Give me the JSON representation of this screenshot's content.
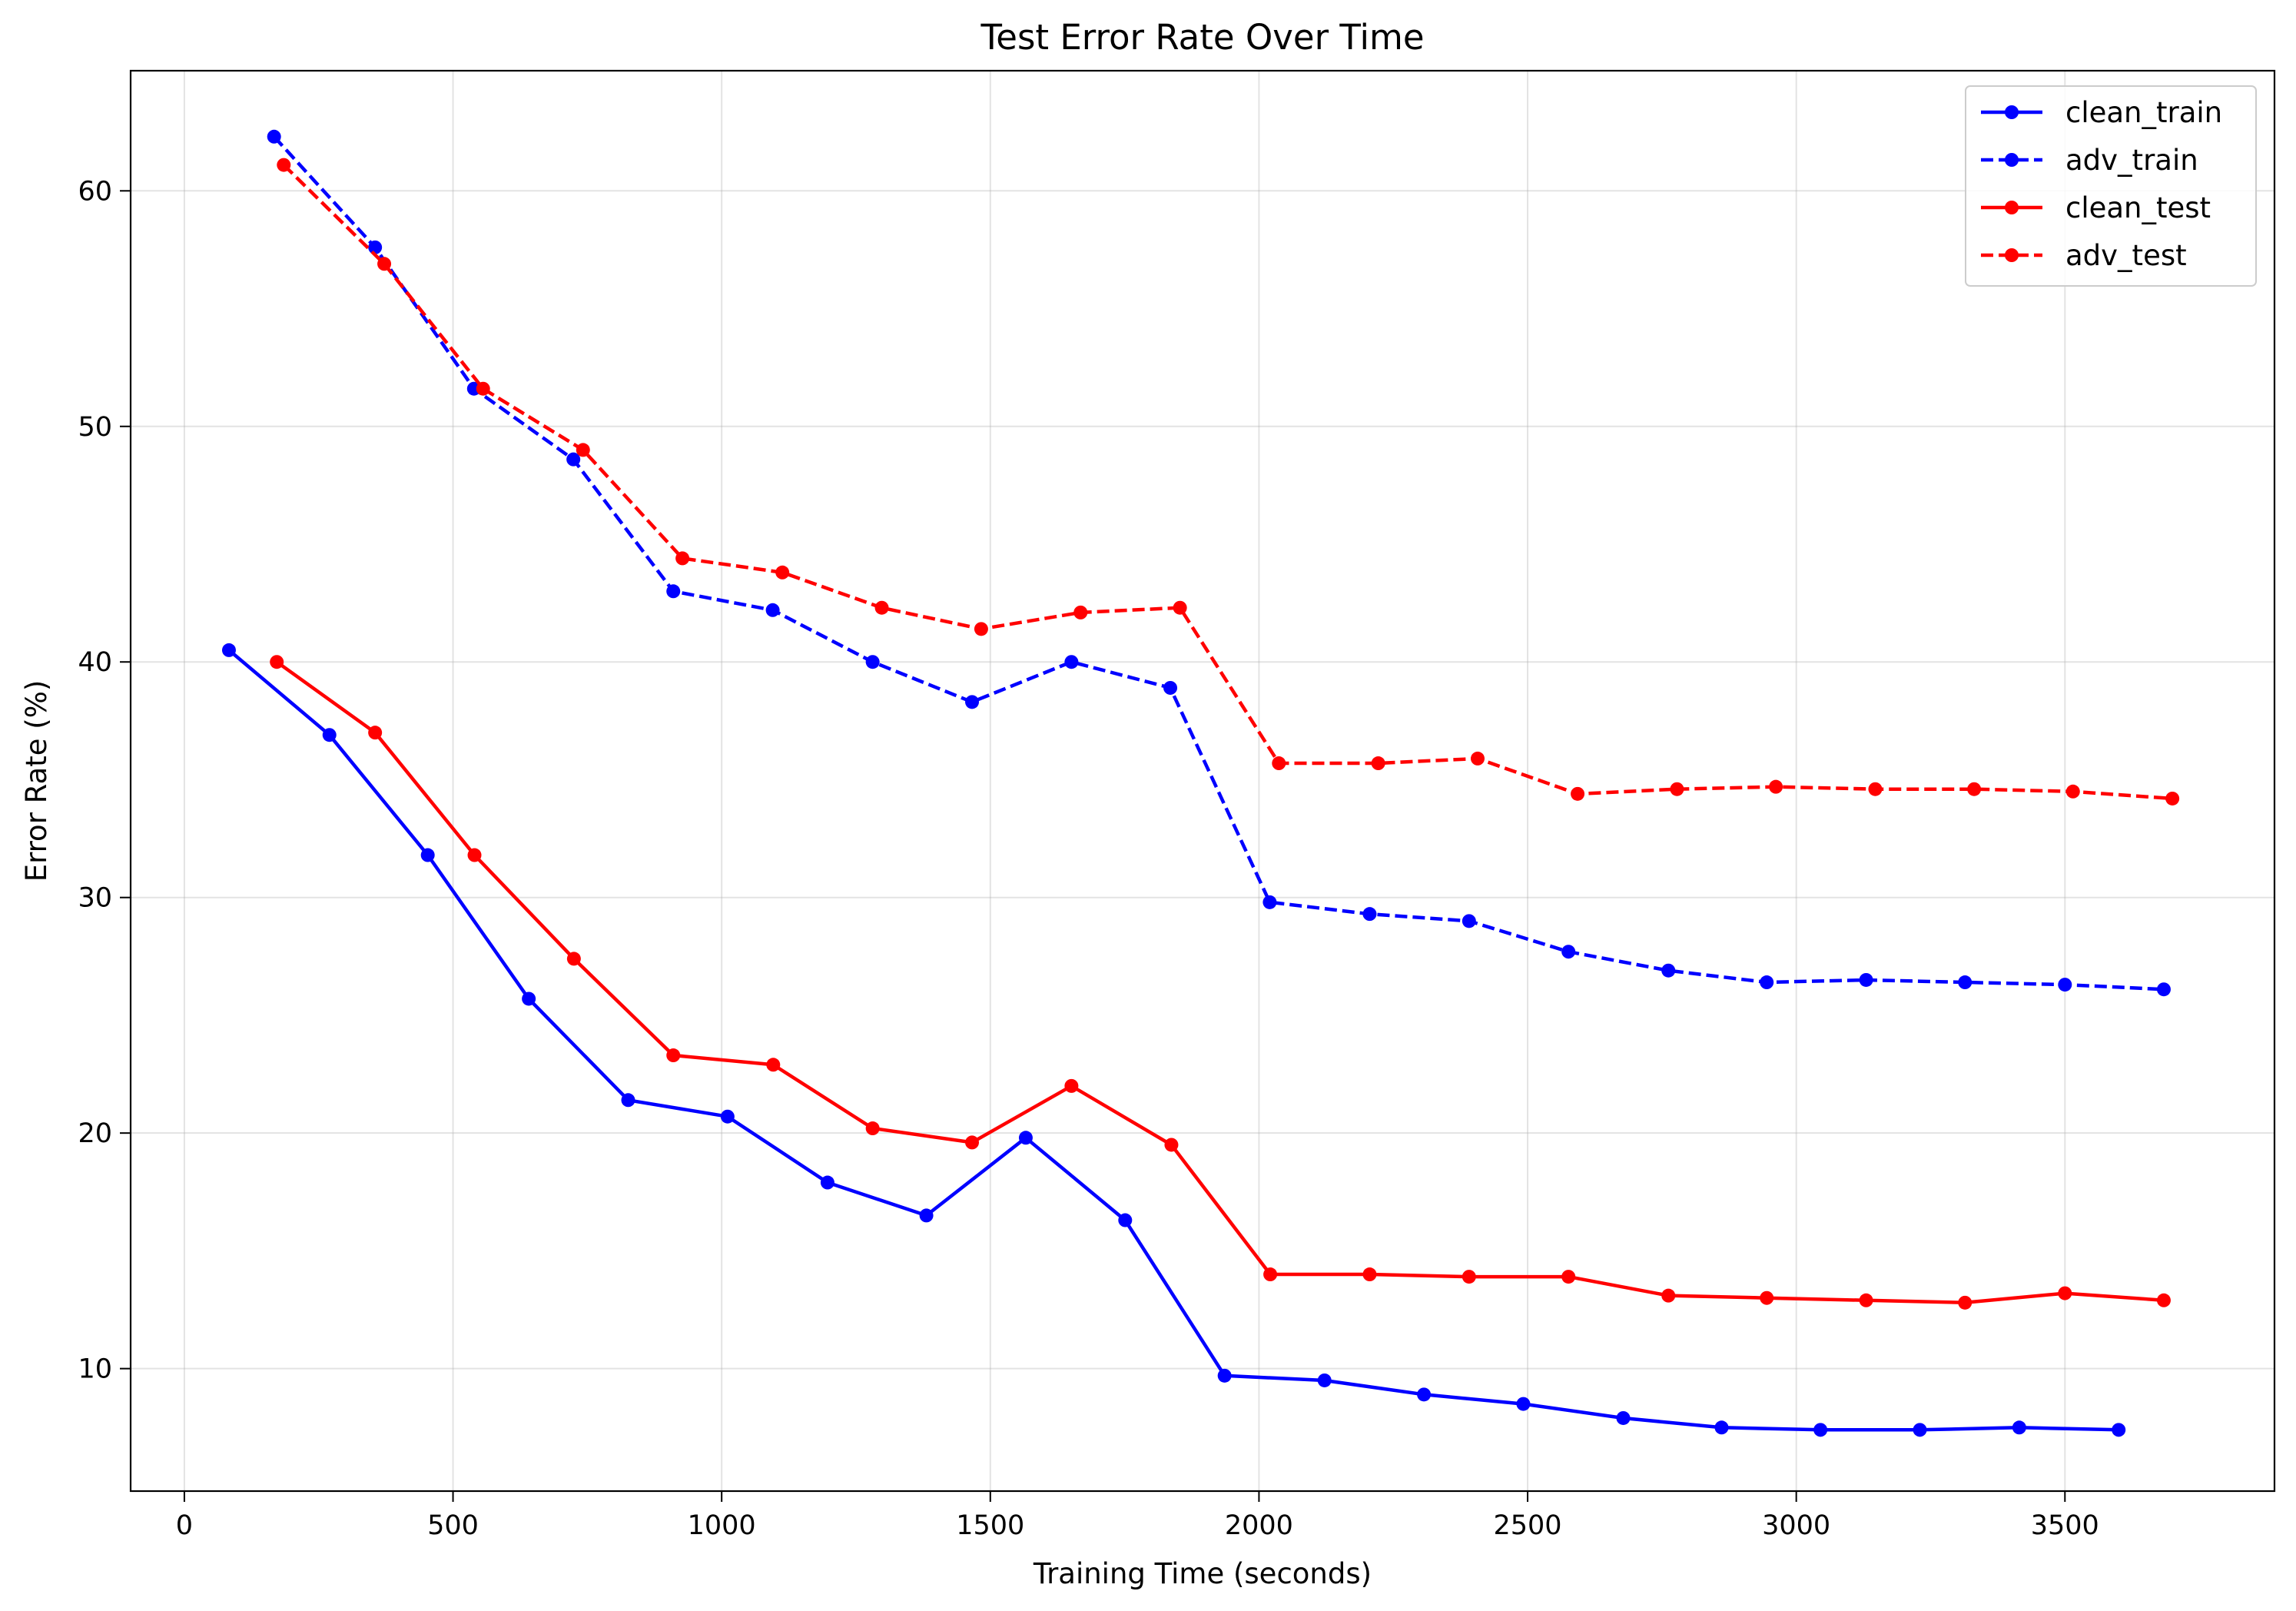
{
  "chart_data": {
    "type": "line",
    "title": "Test Error Rate Over Time",
    "xlabel": "Training Time (seconds)",
    "ylabel": "Error Rate (%)",
    "xlim": [
      -100,
      3890
    ],
    "ylim": [
      4.8,
      65.1
    ],
    "xticks": [
      0,
      500,
      1000,
      1500,
      2000,
      2500,
      3000,
      3500
    ],
    "yticks": [
      10,
      20,
      30,
      40,
      50,
      60
    ],
    "grid": true,
    "legend_position": "top-right",
    "series": [
      {
        "name": "clean_train",
        "color": "#0000ff",
        "linestyle": "solid",
        "marker": "circle",
        "x": [
          83,
          270,
          453,
          641,
          826,
          1011,
          1197,
          1381,
          1566,
          1751,
          1936,
          2122,
          2307,
          2492,
          2678,
          2861,
          3045,
          3230,
          3415,
          3600
        ],
        "y": [
          40.5,
          36.9,
          31.8,
          25.7,
          21.4,
          20.7,
          17.9,
          16.5,
          19.8,
          16.3,
          9.7,
          9.5,
          8.9,
          8.5,
          7.9,
          7.5,
          7.4,
          7.4,
          7.5,
          7.4
        ]
      },
      {
        "name": "adv_train",
        "color": "#0000ff",
        "linestyle": "dashed",
        "marker": "circle",
        "x": [
          167,
          355,
          539,
          724,
          910,
          1095,
          1281,
          1466,
          1651,
          1835,
          2020,
          2206,
          2391,
          2576,
          2762,
          2945,
          3130,
          3314,
          3500,
          3684
        ],
        "y": [
          62.3,
          57.6,
          51.6,
          48.6,
          43.0,
          42.2,
          40.0,
          38.3,
          40.0,
          38.9,
          29.8,
          29.3,
          29.0,
          27.7,
          26.9,
          26.4,
          26.5,
          26.4,
          26.3,
          26.1
        ]
      },
      {
        "name": "clean_test",
        "color": "#ff0000",
        "linestyle": "solid",
        "marker": "circle",
        "x": [
          172,
          355,
          540,
          725,
          910,
          1096,
          1281,
          1466,
          1651,
          1837,
          2021,
          2206,
          2391,
          2576,
          2762,
          2945,
          3130,
          3314,
          3500,
          3684
        ],
        "y": [
          40.0,
          37.0,
          31.8,
          27.4,
          23.3,
          22.9,
          20.2,
          19.6,
          22.0,
          19.5,
          14.0,
          14.0,
          13.9,
          13.9,
          13.1,
          13.0,
          12.9,
          12.8,
          13.2,
          12.9
        ]
      },
      {
        "name": "adv_test",
        "color": "#ff0000",
        "linestyle": "dashed",
        "marker": "circle",
        "x": [
          185,
          372,
          556,
          742,
          927,
          1113,
          1298,
          1483,
          1668,
          1853,
          2037,
          2222,
          2407,
          2593,
          2778,
          2962,
          3147,
          3331,
          3515,
          3700
        ],
        "y": [
          61.1,
          56.9,
          51.6,
          49.0,
          44.4,
          43.8,
          42.3,
          41.4,
          42.1,
          42.3,
          35.7,
          35.7,
          35.9,
          34.4,
          34.6,
          34.7,
          34.6,
          34.6,
          34.5,
          34.2
        ]
      }
    ]
  }
}
